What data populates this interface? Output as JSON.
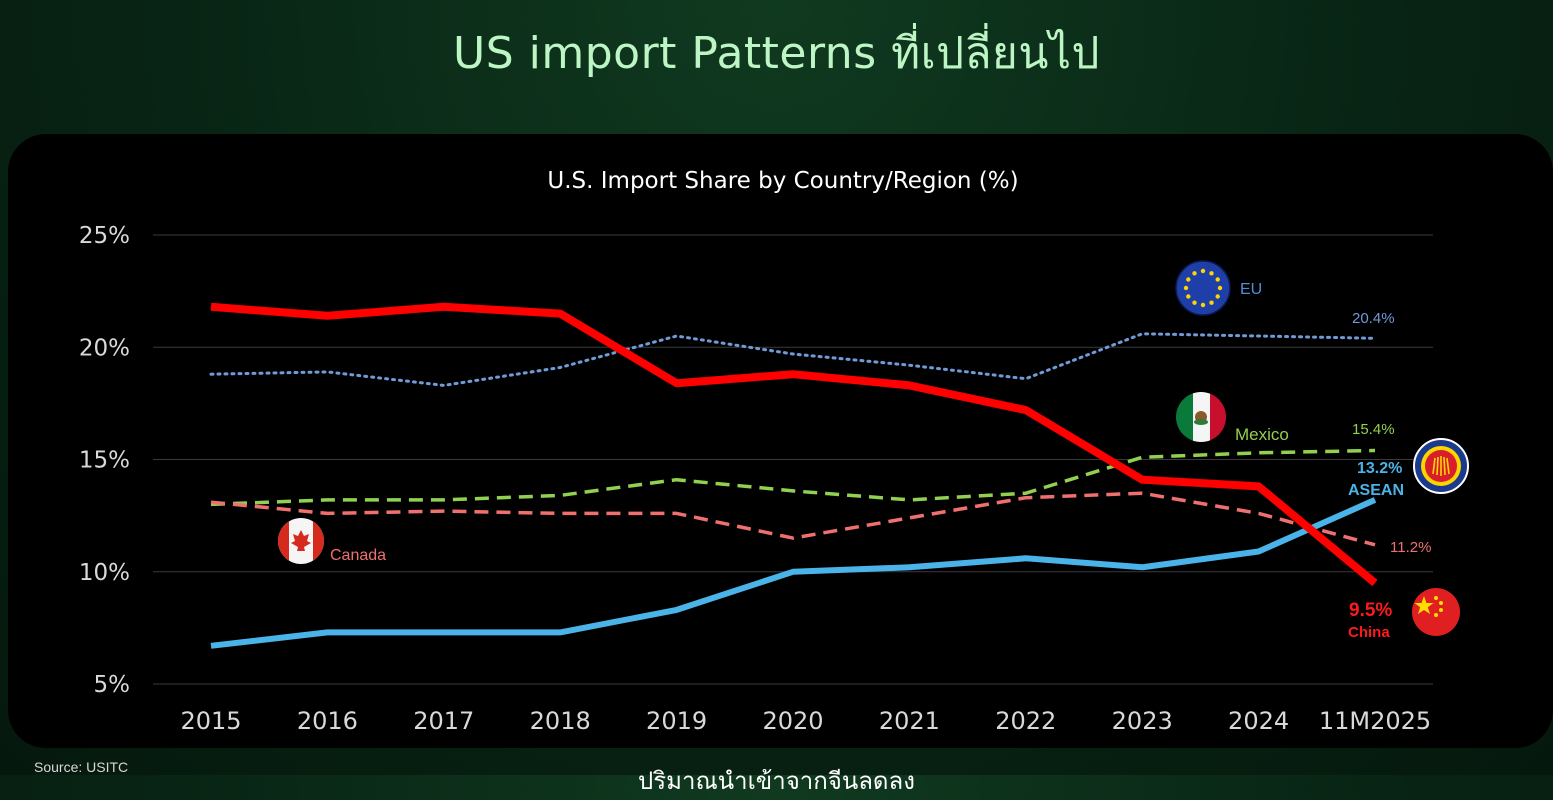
{
  "page": {
    "title": "US import Patterns ที่เปลี่ยนไป",
    "source": "Source: USITC",
    "subtitle_cut": "ปริมาณนำเข้าจากจีนลดลง"
  },
  "colors": {
    "china": "#ff0000",
    "asean": "#4ab3e8",
    "eu": "#6f9bd8",
    "mexico": "#92d050",
    "canada": "#f07070",
    "grid": "#3a3a3a",
    "axis_text": "#d9d9d9"
  },
  "chart_data": {
    "type": "line",
    "title": "U.S. Import Share by Country/Region (%)",
    "xlabel": "",
    "ylabel": "",
    "categories": [
      "2015",
      "2016",
      "2017",
      "2018",
      "2019",
      "2020",
      "2021",
      "2022",
      "2023",
      "2024",
      "11M2025"
    ],
    "ylim": [
      5,
      25
    ],
    "yticks": [
      5,
      10,
      15,
      20,
      25
    ],
    "ytick_labels": [
      "5%",
      "10%",
      "15%",
      "20%",
      "25%"
    ],
    "grid": true,
    "series": [
      {
        "key": "china",
        "name": "China",
        "style": "solid-thick",
        "values": [
          21.8,
          21.4,
          21.8,
          21.5,
          18.4,
          18.8,
          18.3,
          17.2,
          14.1,
          13.8,
          9.5
        ],
        "end_label": "9.5%",
        "icon": "china-flag-icon"
      },
      {
        "key": "asean",
        "name": "ASEAN",
        "style": "solid",
        "values": [
          6.7,
          7.3,
          7.3,
          7.3,
          8.3,
          10.0,
          10.2,
          10.6,
          10.2,
          10.9,
          13.2
        ],
        "end_label": "13.2%",
        "icon": "asean-emblem-icon"
      },
      {
        "key": "eu",
        "name": "EU",
        "style": "dotted",
        "values": [
          18.8,
          18.9,
          18.3,
          19.1,
          20.5,
          19.7,
          19.2,
          18.6,
          20.6,
          20.5,
          20.4
        ],
        "end_label": "20.4%",
        "icon": "eu-flag-icon"
      },
      {
        "key": "mexico",
        "name": "Mexico",
        "style": "dashed",
        "values": [
          13.0,
          13.2,
          13.2,
          13.4,
          14.1,
          13.6,
          13.2,
          13.5,
          15.1,
          15.3,
          15.4
        ],
        "end_label": "15.4%",
        "icon": "mexico-flag-icon"
      },
      {
        "key": "canada",
        "name": "Canada",
        "style": "dashed",
        "values": [
          13.1,
          12.6,
          12.7,
          12.6,
          12.6,
          11.5,
          12.4,
          13.3,
          13.5,
          12.6,
          11.2
        ],
        "end_label": "11.2%",
        "icon": "canada-flag-icon"
      }
    ]
  }
}
